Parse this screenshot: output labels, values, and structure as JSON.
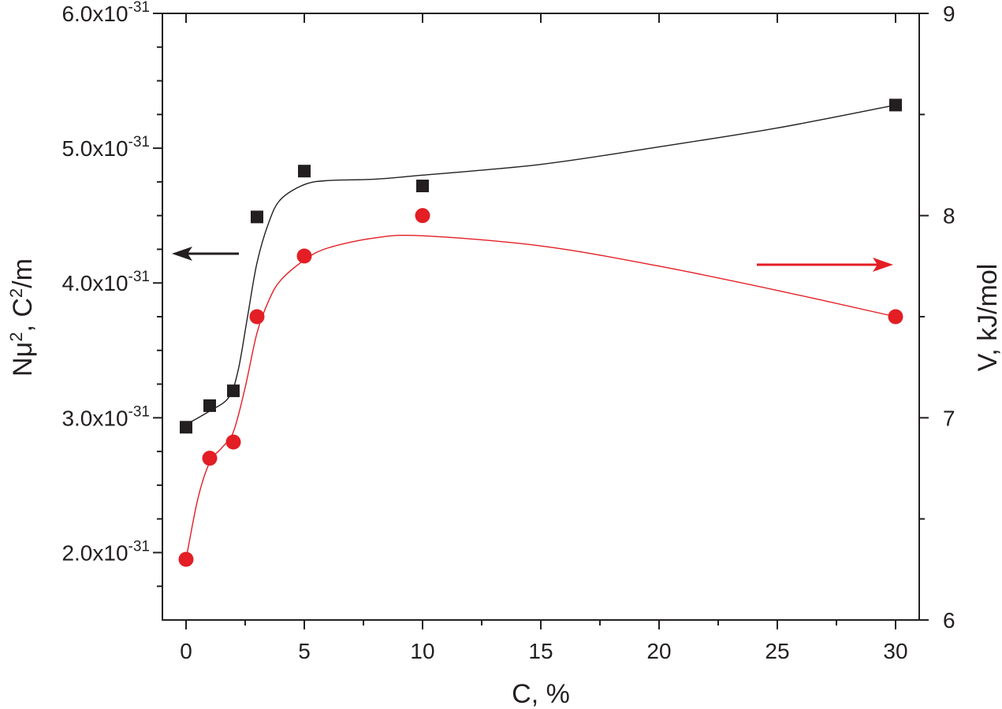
{
  "chart_data": {
    "type": "scatter",
    "xlabel": "C, %",
    "ylabel_left": {
      "prefix": "N",
      "mu": "μ",
      "sup": "2",
      "middle": ", C",
      "sup2": "2",
      "suffix": "/m"
    },
    "ylabel_right": "V, kJ/mol",
    "xlim": [
      -1,
      31
    ],
    "ylim_left": [
      1.5e-31,
      6e-31
    ],
    "ylim_right": [
      6,
      9
    ],
    "x_ticks": [
      {
        "value": 0,
        "label": "0"
      },
      {
        "value": 5,
        "label": "5"
      },
      {
        "value": 10,
        "label": "10"
      },
      {
        "value": 15,
        "label": "15"
      },
      {
        "value": 20,
        "label": "20"
      },
      {
        "value": 25,
        "label": "25"
      },
      {
        "value": 30,
        "label": "30"
      }
    ],
    "y_left_ticks": [
      {
        "value": 2e-31,
        "base": "2.0x10",
        "exp": "-31"
      },
      {
        "value": 3e-31,
        "base": "3.0x10",
        "exp": "-31"
      },
      {
        "value": 4e-31,
        "base": "4.0x10",
        "exp": "-31"
      },
      {
        "value": 5e-31,
        "base": "5.0x10",
        "exp": "-31"
      },
      {
        "value": 6e-31,
        "base": "6.0x10",
        "exp": "-31"
      }
    ],
    "y_right_ticks": [
      {
        "value": 6,
        "label": "6"
      },
      {
        "value": 7,
        "label": "7"
      },
      {
        "value": 8,
        "label": "8"
      },
      {
        "value": 9,
        "label": "9"
      }
    ],
    "series": [
      {
        "name": "Nμ2",
        "axis": "left",
        "marker": "square",
        "color": "#231f20",
        "x": [
          0,
          1,
          2,
          3,
          5,
          10,
          30
        ],
        "values": [
          2.93e-31,
          3.09e-31,
          3.2e-31,
          4.49e-31,
          4.83e-31,
          4.72e-31,
          5.32e-31
        ],
        "fit_curve": [
          [
            0,
            2.95e-31
          ],
          [
            1,
            3.05e-31
          ],
          [
            1.8,
            3.15e-31
          ],
          [
            2.2,
            3.35e-31
          ],
          [
            2.6,
            3.75e-31
          ],
          [
            3,
            4.15e-31
          ],
          [
            3.5,
            4.45e-31
          ],
          [
            4,
            4.62e-31
          ],
          [
            5,
            4.73e-31
          ],
          [
            6,
            4.76e-31
          ],
          [
            8,
            4.77e-31
          ],
          [
            10,
            4.8e-31
          ],
          [
            15,
            4.88e-31
          ],
          [
            20,
            5.01e-31
          ],
          [
            25,
            5.15e-31
          ],
          [
            30,
            5.32e-31
          ]
        ]
      },
      {
        "name": "V",
        "axis": "right",
        "marker": "circle",
        "color": "#e31e24",
        "x": [
          0,
          1,
          2,
          3,
          5,
          10,
          30
        ],
        "values": [
          6.3,
          6.8,
          6.88,
          7.5,
          7.8,
          8.0,
          7.5
        ],
        "fit_curve": [
          [
            0,
            6.3
          ],
          [
            0.5,
            6.6
          ],
          [
            1,
            6.78
          ],
          [
            1.5,
            6.85
          ],
          [
            2,
            6.93
          ],
          [
            2.5,
            7.15
          ],
          [
            3,
            7.42
          ],
          [
            3.5,
            7.58
          ],
          [
            4,
            7.68
          ],
          [
            5,
            7.78
          ],
          [
            6,
            7.84
          ],
          [
            8,
            7.89
          ],
          [
            10,
            7.9
          ],
          [
            15,
            7.85
          ],
          [
            20,
            7.75
          ],
          [
            25,
            7.63
          ],
          [
            30,
            7.5
          ]
        ]
      }
    ],
    "annotations": [
      {
        "type": "arrow",
        "direction": "left",
        "color": "#231f20",
        "meaning": "left axis"
      },
      {
        "type": "arrow",
        "direction": "right",
        "color": "#e31e24",
        "meaning": "right axis"
      }
    ]
  }
}
